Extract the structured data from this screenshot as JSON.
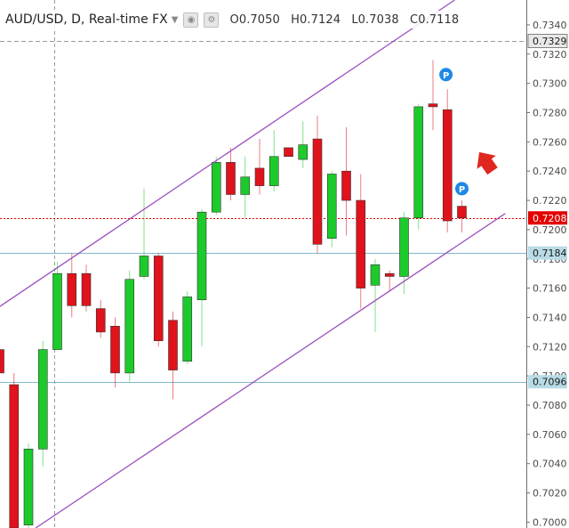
{
  "header": {
    "symbol": "AUD/USD, D, Real-time FX",
    "open": "O0.7050",
    "high": "H0.7124",
    "low": "L0.7038",
    "close": "C0.7118",
    "icons": [
      "chevron-down-icon",
      "eye-icon",
      "gear-icon"
    ]
  },
  "chart_data": {
    "type": "candlestick",
    "y_ticks": [
      "0.7340",
      "0.7320",
      "0.7300",
      "0.7280",
      "0.7260",
      "0.7240",
      "0.7220",
      "0.7200",
      "0.7180",
      "0.7160",
      "0.7140",
      "0.7120",
      "0.7100",
      "0.7080",
      "0.7060",
      "0.7040",
      "0.7020",
      "0.7000"
    ],
    "ylim": [
      0.6996,
      0.7357
    ],
    "candles": [
      {
        "o": 0.7118,
        "h": 0.7118,
        "l": 0.709,
        "c": 0.7102
      },
      {
        "o": 0.7094,
        "h": 0.7102,
        "l": 0.6996,
        "c": 0.6996
      },
      {
        "o": 0.6998,
        "h": 0.7054,
        "l": 0.6996,
        "c": 0.705
      },
      {
        "o": 0.705,
        "h": 0.7124,
        "l": 0.7038,
        "c": 0.7118
      },
      {
        "o": 0.7118,
        "h": 0.7178,
        "l": 0.7118,
        "c": 0.717
      },
      {
        "o": 0.717,
        "h": 0.7184,
        "l": 0.714,
        "c": 0.7148
      },
      {
        "o": 0.717,
        "h": 0.7176,
        "l": 0.7144,
        "c": 0.7148
      },
      {
        "o": 0.7146,
        "h": 0.7152,
        "l": 0.7126,
        "c": 0.713
      },
      {
        "o": 0.7134,
        "h": 0.714,
        "l": 0.7092,
        "c": 0.7102
      },
      {
        "o": 0.7102,
        "h": 0.7172,
        "l": 0.7096,
        "c": 0.7166
      },
      {
        "o": 0.7168,
        "h": 0.7228,
        "l": 0.7166,
        "c": 0.7182
      },
      {
        "o": 0.7182,
        "h": 0.7184,
        "l": 0.712,
        "c": 0.7124
      },
      {
        "o": 0.7138,
        "h": 0.7144,
        "l": 0.7084,
        "c": 0.7104
      },
      {
        "o": 0.711,
        "h": 0.7158,
        "l": 0.7108,
        "c": 0.7154
      },
      {
        "o": 0.7152,
        "h": 0.7214,
        "l": 0.712,
        "c": 0.7212
      },
      {
        "o": 0.7212,
        "h": 0.725,
        "l": 0.721,
        "c": 0.7246
      },
      {
        "o": 0.7246,
        "h": 0.7256,
        "l": 0.722,
        "c": 0.7224
      },
      {
        "o": 0.7224,
        "h": 0.725,
        "l": 0.7208,
        "c": 0.7236
      },
      {
        "o": 0.7242,
        "h": 0.7262,
        "l": 0.7224,
        "c": 0.723
      },
      {
        "o": 0.723,
        "h": 0.7268,
        "l": 0.7226,
        "c": 0.725
      },
      {
        "o": 0.7256,
        "h": 0.7256,
        "l": 0.725,
        "c": 0.725
      },
      {
        "o": 0.7248,
        "h": 0.7274,
        "l": 0.7242,
        "c": 0.7258
      },
      {
        "o": 0.7262,
        "h": 0.7278,
        "l": 0.7184,
        "c": 0.719
      },
      {
        "o": 0.7194,
        "h": 0.724,
        "l": 0.7188,
        "c": 0.7238
      },
      {
        "o": 0.724,
        "h": 0.727,
        "l": 0.7196,
        "c": 0.722
      },
      {
        "o": 0.722,
        "h": 0.7238,
        "l": 0.7146,
        "c": 0.716
      },
      {
        "o": 0.7162,
        "h": 0.718,
        "l": 0.713,
        "c": 0.7176
      },
      {
        "o": 0.717,
        "h": 0.7172,
        "l": 0.7158,
        "c": 0.7168
      },
      {
        "o": 0.7168,
        "h": 0.7212,
        "l": 0.7156,
        "c": 0.7208
      },
      {
        "o": 0.7208,
        "h": 0.7286,
        "l": 0.72,
        "c": 0.7284
      },
      {
        "o": 0.7286,
        "h": 0.7316,
        "l": 0.7268,
        "c": 0.7284
      },
      {
        "o": 0.7282,
        "h": 0.7296,
        "l": 0.7198,
        "c": 0.7206
      },
      {
        "o": 0.7216,
        "h": 0.722,
        "l": 0.7198,
        "c": 0.7208
      }
    ],
    "channel_lines": [
      {
        "from": {
          "candle": -0.5,
          "price": 0.7144
        },
        "to": {
          "candle": 31.5,
          "price": 0.7357
        }
      },
      {
        "from": {
          "candle": 2.5,
          "price": 0.6996
        },
        "to": {
          "candle": 35.0,
          "price": 0.7211
        }
      }
    ],
    "horizontal_lines": [
      {
        "price": 0.7329,
        "label": "0.7329",
        "style": "dashed",
        "color": "#9a9a9a"
      },
      {
        "price": 0.7208,
        "label": "0.7208",
        "style": "dotted",
        "color": "#e30000"
      },
      {
        "price": 0.7184,
        "label": "0.7184",
        "style": "solid",
        "color": "#7fb8cc"
      },
      {
        "price": 0.7096,
        "label": "0.7096",
        "style": "solid",
        "color": "#7fb8cc"
      }
    ],
    "markers": [
      {
        "candle": 30.9,
        "price": 0.7306,
        "label": "P",
        "color": "#1e88e5"
      },
      {
        "candle": 32.0,
        "price": 0.7228,
        "label": "P",
        "color": "#1e88e5"
      }
    ],
    "arrow": {
      "candle": 33.7,
      "price": 0.7246,
      "direction": "up-right",
      "color": "#e0261f"
    },
    "colors": {
      "up": "#1ccb2b",
      "down": "#e0121b",
      "wick_up": "#1ccb2b",
      "wick_down": "#e0121b",
      "channel": "#9b4fbf",
      "grid": "#eeeeee"
    }
  }
}
